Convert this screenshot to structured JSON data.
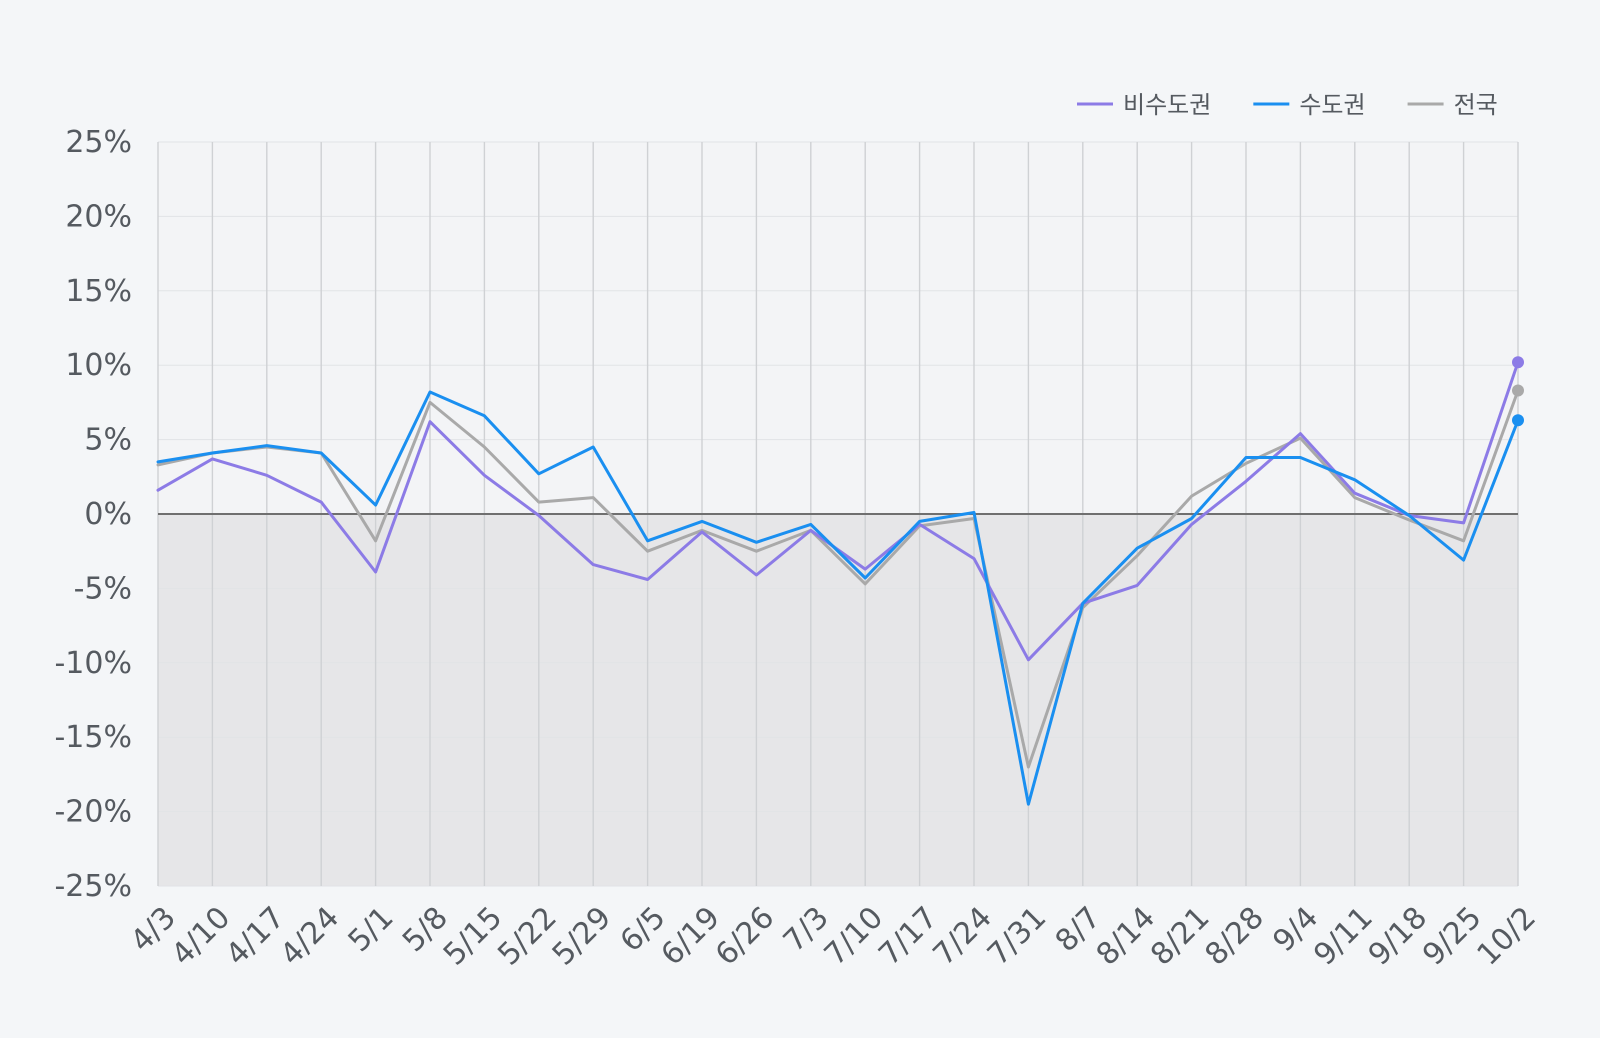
{
  "chart_data": {
    "type": "line",
    "title": "",
    "xlabel": "",
    "ylabel": "",
    "ylim": [
      -25,
      25
    ],
    "yticks": [
      25,
      20,
      15,
      10,
      5,
      0,
      -5,
      -10,
      -15,
      -20,
      -25
    ],
    "ytick_suffix": "%",
    "grid": true,
    "negative_region_shaded": true,
    "legend_position": "top-right",
    "categories": [
      "4/3",
      "4/10",
      "4/17",
      "4/24",
      "5/1",
      "5/8",
      "5/15",
      "5/22",
      "5/29",
      "6/5",
      "6/19",
      "6/26",
      "7/3",
      "7/10",
      "7/17",
      "7/24",
      "7/31",
      "8/7",
      "8/14",
      "8/21",
      "8/28",
      "9/4",
      "9/11",
      "9/18",
      "9/25",
      "10/2"
    ],
    "series": [
      {
        "name": "비수도권",
        "color": "#8c7be6",
        "values": [
          1.6,
          3.7,
          2.6,
          0.8,
          -3.9,
          6.2,
          2.6,
          -0.1,
          -3.4,
          -4.4,
          -1.2,
          -4.1,
          -1.1,
          -3.7,
          -0.7,
          -3.0,
          -9.8,
          -6.0,
          -4.8,
          -0.7,
          2.2,
          5.4,
          1.4,
          -0.1,
          -0.6,
          10.2
        ]
      },
      {
        "name": "수도권",
        "color": "#1a8ff0",
        "values": [
          3.5,
          4.1,
          4.6,
          4.1,
          0.6,
          8.2,
          6.6,
          2.7,
          4.5,
          -1.8,
          -0.5,
          -1.9,
          -0.7,
          -4.3,
          -0.5,
          0.1,
          -19.5,
          -6.0,
          -2.3,
          -0.3,
          3.8,
          3.8,
          2.3,
          -0.1,
          -3.1,
          6.3
        ]
      },
      {
        "name": "전국",
        "color": "#a9a9a9",
        "values": [
          3.3,
          4.1,
          4.5,
          4.1,
          -1.8,
          7.5,
          4.5,
          0.8,
          1.1,
          -2.5,
          -1.1,
          -2.5,
          -1.1,
          -4.7,
          -0.8,
          -0.3,
          -17.0,
          -6.3,
          -2.8,
          1.2,
          3.4,
          5.1,
          1.1,
          -0.4,
          -1.8,
          8.3
        ]
      }
    ]
  }
}
